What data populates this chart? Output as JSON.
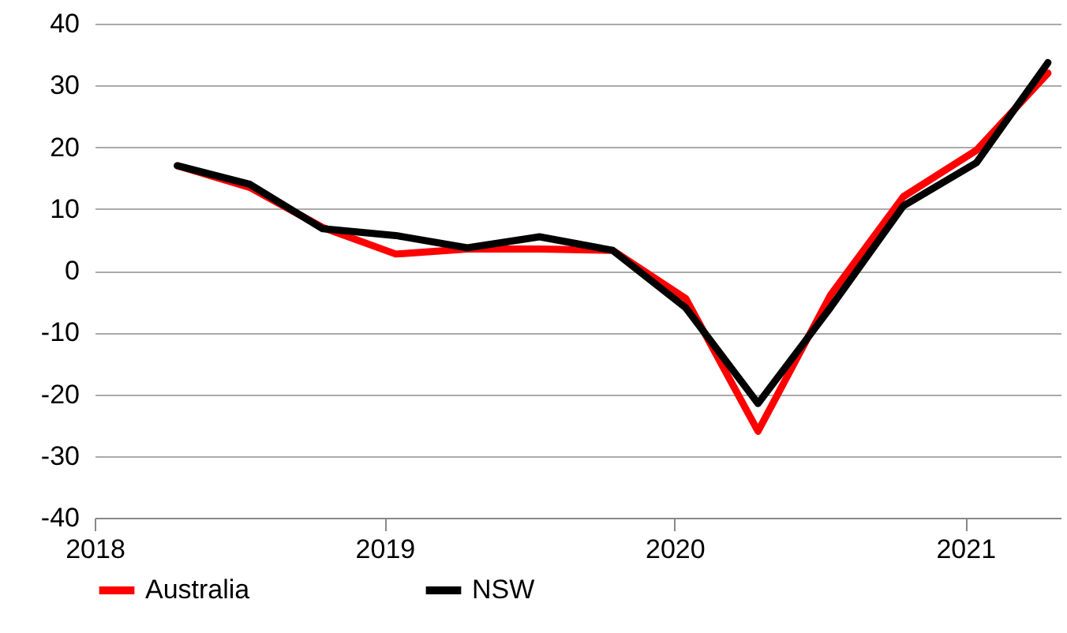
{
  "chart_data": {
    "type": "line",
    "x": [
      "2018-04-15",
      "2018-07-15",
      "2018-10-15",
      "2019-01-15",
      "2019-04-15",
      "2019-07-15",
      "2019-10-15",
      "2020-01-15",
      "2020-04-15",
      "2020-07-15",
      "2020-10-15",
      "2021-01-15",
      "2021-04-15"
    ],
    "series": [
      {
        "name": "Australia",
        "color": "#ff0000",
        "values": [
          17,
          13.5,
          7,
          2.7,
          3.5,
          3.5,
          3.3,
          -4.5,
          -26,
          -4,
          12,
          19.5,
          32
        ]
      },
      {
        "name": "NSW",
        "color": "#000000",
        "values": [
          17,
          14,
          6.8,
          5.7,
          3.7,
          5.5,
          3.3,
          -6,
          -21.5,
          -6,
          10.5,
          17.5,
          33.7
        ]
      }
    ],
    "xlim": [
      "2018-01-01",
      "2021-05-01"
    ],
    "xticks": [
      "2018",
      "2019",
      "2020",
      "2021"
    ],
    "ylim": [
      -40,
      40
    ],
    "yticks": [
      -40,
      -30,
      -20,
      -10,
      0,
      10,
      20,
      30,
      40
    ],
    "grid": "y",
    "legend": "bottom",
    "line_style": "solid",
    "marker": "none"
  }
}
